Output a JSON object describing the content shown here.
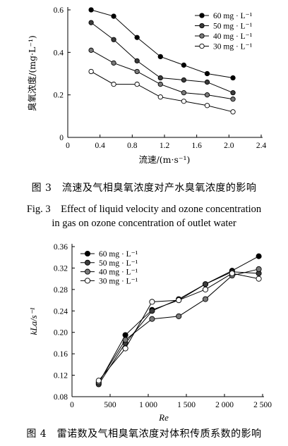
{
  "chart_data": [
    {
      "type": "line",
      "xlabel": "流速/(m·s⁻¹)",
      "ylabel": "臭氧浓度/(mg·L⁻¹)",
      "xlim": [
        0,
        2.4
      ],
      "ylim": [
        0,
        0.6
      ],
      "xticks": [
        "0",
        "0.4",
        "0.8",
        "1.2",
        "1.6",
        "2.0",
        "2.4"
      ],
      "yticks": [
        "0",
        "0.2",
        "0.4",
        "0.6"
      ],
      "legend_position": "top-right",
      "grid": false,
      "x": [
        0.29,
        0.57,
        0.86,
        1.15,
        1.44,
        1.73,
        2.05
      ],
      "series": [
        {
          "name": "60 mg · L⁻¹",
          "marker": "filled",
          "values": [
            0.6,
            0.57,
            0.47,
            0.38,
            0.34,
            0.3,
            0.28
          ]
        },
        {
          "name": "50 mg · L⁻¹",
          "marker": "half",
          "values": [
            0.54,
            0.46,
            0.36,
            0.28,
            0.27,
            0.26,
            0.21
          ]
        },
        {
          "name": "40 mg · L⁻¹",
          "marker": "gray",
          "values": [
            0.41,
            0.35,
            0.31,
            0.25,
            0.21,
            0.2,
            0.18
          ]
        },
        {
          "name": "30 mg · L⁻¹",
          "marker": "open",
          "values": [
            0.31,
            0.25,
            0.25,
            0.19,
            0.17,
            0.15,
            0.12
          ]
        }
      ]
    },
    {
      "type": "line",
      "xlabel": "Re",
      "ylabel": "kLa/s⁻¹",
      "xlim": [
        0,
        2500
      ],
      "ylim": [
        0.08,
        0.36
      ],
      "xticks": [
        "0",
        "500",
        "1 000",
        "1 500",
        "2 000",
        "2 500"
      ],
      "yticks": [
        "0.08",
        "0.12",
        "0.16",
        "0.20",
        "0.24",
        "0.28",
        "0.32",
        "0.36"
      ],
      "legend_position": "top-left",
      "grid": false,
      "x": [
        350,
        700,
        1050,
        1400,
        1750,
        2100,
        2450
      ],
      "series": [
        {
          "name": "60 mg · L⁻¹",
          "marker": "filled",
          "values": [
            0.105,
            0.195,
            0.242,
            0.26,
            0.29,
            0.315,
            0.342
          ]
        },
        {
          "name": "50 mg · L⁻¹",
          "marker": "half",
          "values": [
            0.103,
            0.18,
            0.24,
            0.262,
            0.29,
            0.313,
            0.31
          ]
        },
        {
          "name": "40 mg · L⁻¹",
          "marker": "gray",
          "values": [
            0.107,
            0.186,
            0.225,
            0.23,
            0.262,
            0.306,
            0.318
          ]
        },
        {
          "name": "30 mg · L⁻¹",
          "marker": "open",
          "values": [
            0.11,
            0.17,
            0.257,
            0.26,
            0.28,
            0.31,
            0.3
          ]
        }
      ]
    }
  ],
  "captions": {
    "fig3_zh": "图 3　流速及气相臭氧浓度对产水臭氧浓度的影响",
    "fig3_en_line1": "Fig. 3　Effect of liquid velocity and ozone concentration",
    "fig3_en_line2": "in gas on ozone concentration of outlet water",
    "fig4_zh": "图 4　雷诺数及气相臭氧浓度对体积传质系数的影响"
  }
}
